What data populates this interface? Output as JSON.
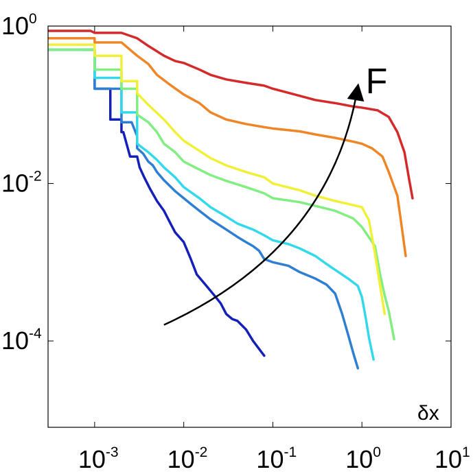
{
  "chart_data": {
    "type": "line",
    "title": "",
    "xlabel": "δx",
    "ylabel": "",
    "xscale": "log",
    "yscale": "log",
    "xlim": [
      0.0003,
      10
    ],
    "ylim": [
      8e-06,
      1
    ],
    "x_ticks": [
      {
        "value": 0.001,
        "base": "10",
        "exp": "-3"
      },
      {
        "value": 0.01,
        "base": "10",
        "exp": "-2"
      },
      {
        "value": 0.1,
        "base": "10",
        "exp": "-1"
      },
      {
        "value": 1,
        "base": "10",
        "exp": "0"
      },
      {
        "value": 10,
        "base": "10",
        "exp": "1"
      }
    ],
    "y_ticks": [
      {
        "value": 1,
        "base": "10",
        "exp": "0"
      },
      {
        "value": 0.01,
        "base": "10",
        "exp": "-2"
      },
      {
        "value": 0.0001,
        "base": "10",
        "exp": "-4"
      }
    ],
    "grid": false,
    "legend": "none",
    "annotation": {
      "text": "F",
      "meaning": "arrow indicating increasing F across curves",
      "arrow_start": [
        0.006,
        0.00016
      ],
      "arrow_control": [
        0.45,
        0.0015
      ],
      "arrow_end": [
        0.9,
        0.17
      ],
      "label_position": [
        1.1,
        0.14
      ]
    },
    "series": [
      {
        "name": "curve-1",
        "color": "#1520b8",
        "points": [
          [
            0.0007,
            0.5
          ],
          [
            0.001,
            0.5
          ],
          [
            0.001,
            0.16
          ],
          [
            0.0015,
            0.16
          ],
          [
            0.0015,
            0.065
          ],
          [
            0.002,
            0.065
          ],
          [
            0.002,
            0.045
          ],
          [
            0.0021,
            0.045
          ],
          [
            0.0025,
            0.022
          ],
          [
            0.003,
            0.022
          ],
          [
            0.0032,
            0.016
          ],
          [
            0.0036,
            0.012
          ],
          [
            0.0042,
            0.0085
          ],
          [
            0.005,
            0.006
          ],
          [
            0.006,
            0.0045
          ],
          [
            0.007,
            0.0032
          ],
          [
            0.008,
            0.0024
          ],
          [
            0.01,
            0.0018
          ],
          [
            0.012,
            0.0011
          ],
          [
            0.014,
            0.0007
          ],
          [
            0.018,
            0.0005
          ],
          [
            0.022,
            0.00038
          ],
          [
            0.026,
            0.0003
          ],
          [
            0.03,
            0.00022
          ],
          [
            0.035,
            0.00019
          ],
          [
            0.04,
            0.00018
          ],
          [
            0.05,
            0.00014
          ],
          [
            0.06,
            0.0001
          ],
          [
            0.08,
            6.5e-05
          ]
        ]
      },
      {
        "name": "curve-2",
        "color": "#2e7ed2",
        "points": [
          [
            0.0003,
            0.5
          ],
          [
            0.001,
            0.5
          ],
          [
            0.001,
            0.16
          ],
          [
            0.002,
            0.16
          ],
          [
            0.002,
            0.06
          ],
          [
            0.0026,
            0.06
          ],
          [
            0.003,
            0.04
          ],
          [
            0.003,
            0.028
          ],
          [
            0.0035,
            0.024
          ],
          [
            0.004,
            0.019
          ],
          [
            0.0045,
            0.017
          ],
          [
            0.005,
            0.014
          ],
          [
            0.006,
            0.011
          ],
          [
            0.008,
            0.008
          ],
          [
            0.01,
            0.0065
          ],
          [
            0.012,
            0.0055
          ],
          [
            0.015,
            0.0045
          ],
          [
            0.02,
            0.0035
          ],
          [
            0.03,
            0.0026
          ],
          [
            0.04,
            0.0021
          ],
          [
            0.05,
            0.0018
          ],
          [
            0.06,
            0.0016
          ],
          [
            0.07,
            0.0014
          ],
          [
            0.08,
            0.0011
          ],
          [
            0.1,
            0.001
          ],
          [
            0.15,
            0.0009
          ],
          [
            0.2,
            0.00075
          ],
          [
            0.3,
            0.00062
          ],
          [
            0.4,
            0.00052
          ],
          [
            0.5,
            0.0004
          ],
          [
            0.6,
            0.00022
          ],
          [
            0.7,
            0.00012
          ],
          [
            0.8,
            7e-05
          ],
          [
            0.9,
            4.5e-05
          ]
        ]
      },
      {
        "name": "curve-3",
        "color": "#33d9ea",
        "points": [
          [
            0.0003,
            0.5
          ],
          [
            0.001,
            0.5
          ],
          [
            0.001,
            0.22
          ],
          [
            0.002,
            0.22
          ],
          [
            0.002,
            0.08
          ],
          [
            0.003,
            0.08
          ],
          [
            0.003,
            0.032
          ],
          [
            0.0035,
            0.028
          ],
          [
            0.004,
            0.025
          ],
          [
            0.005,
            0.02
          ],
          [
            0.006,
            0.016
          ],
          [
            0.008,
            0.012
          ],
          [
            0.01,
            0.009
          ],
          [
            0.015,
            0.0065
          ],
          [
            0.02,
            0.005
          ],
          [
            0.03,
            0.0038
          ],
          [
            0.04,
            0.0031
          ],
          [
            0.06,
            0.0026
          ],
          [
            0.08,
            0.0022
          ],
          [
            0.1,
            0.0019
          ],
          [
            0.15,
            0.0017
          ],
          [
            0.2,
            0.0015
          ],
          [
            0.3,
            0.0012
          ],
          [
            0.4,
            0.00095
          ],
          [
            0.5,
            0.0008
          ],
          [
            0.7,
            0.00062
          ],
          [
            0.9,
            0.0005
          ],
          [
            1.0,
            0.00036
          ],
          [
            1.1,
            0.0002
          ],
          [
            1.2,
            0.00011
          ],
          [
            1.35,
            5.8e-05
          ]
        ]
      },
      {
        "name": "curve-4",
        "color": "#82ee82",
        "points": [
          [
            0.0003,
            0.5
          ],
          [
            0.001,
            0.5
          ],
          [
            0.001,
            0.28
          ],
          [
            0.002,
            0.28
          ],
          [
            0.002,
            0.16
          ],
          [
            0.003,
            0.16
          ],
          [
            0.003,
            0.075
          ],
          [
            0.004,
            0.06
          ],
          [
            0.005,
            0.045
          ],
          [
            0.006,
            0.032
          ],
          [
            0.008,
            0.025
          ],
          [
            0.01,
            0.019
          ],
          [
            0.015,
            0.015
          ],
          [
            0.02,
            0.0128
          ],
          [
            0.03,
            0.0108
          ],
          [
            0.05,
            0.009
          ],
          [
            0.08,
            0.0075
          ],
          [
            0.1,
            0.0065
          ],
          [
            0.2,
            0.0058
          ],
          [
            0.3,
            0.0052
          ],
          [
            0.5,
            0.0045
          ],
          [
            0.8,
            0.0036
          ],
          [
            1.0,
            0.0028
          ],
          [
            1.4,
            0.0016
          ],
          [
            1.6,
            0.0007
          ],
          [
            1.8,
            0.00038
          ],
          [
            2.0,
            0.00024
          ],
          [
            2.3,
            0.000105
          ]
        ]
      },
      {
        "name": "curve-5",
        "color": "#f0f038",
        "points": [
          [
            0.0003,
            0.58
          ],
          [
            0.001,
            0.58
          ],
          [
            0.001,
            0.42
          ],
          [
            0.002,
            0.42
          ],
          [
            0.002,
            0.2
          ],
          [
            0.003,
            0.2
          ],
          [
            0.003,
            0.14
          ],
          [
            0.004,
            0.1
          ],
          [
            0.006,
            0.065
          ],
          [
            0.008,
            0.045
          ],
          [
            0.01,
            0.035
          ],
          [
            0.015,
            0.026
          ],
          [
            0.02,
            0.021
          ],
          [
            0.03,
            0.017
          ],
          [
            0.05,
            0.014
          ],
          [
            0.08,
            0.012
          ],
          [
            0.1,
            0.01
          ],
          [
            0.2,
            0.0082
          ],
          [
            0.3,
            0.007
          ],
          [
            0.5,
            0.006
          ],
          [
            0.7,
            0.0055
          ],
          [
            1.0,
            0.005
          ],
          [
            1.2,
            0.0034
          ],
          [
            1.4,
            0.0013
          ],
          [
            1.6,
            0.0005
          ],
          [
            1.8,
            0.00022
          ]
        ]
      },
      {
        "name": "curve-6",
        "color": "#ee8628",
        "points": [
          [
            0.0003,
            0.7
          ],
          [
            0.001,
            0.7
          ],
          [
            0.001,
            0.62
          ],
          [
            0.002,
            0.62
          ],
          [
            0.0025,
            0.5
          ],
          [
            0.003,
            0.42
          ],
          [
            0.004,
            0.33
          ],
          [
            0.005,
            0.24
          ],
          [
            0.007,
            0.18
          ],
          [
            0.01,
            0.135
          ],
          [
            0.015,
            0.105
          ],
          [
            0.02,
            0.08
          ],
          [
            0.03,
            0.065
          ],
          [
            0.05,
            0.057
          ],
          [
            0.08,
            0.052
          ],
          [
            0.1,
            0.05
          ],
          [
            0.2,
            0.046
          ],
          [
            0.3,
            0.042
          ],
          [
            0.5,
            0.038
          ],
          [
            0.8,
            0.034
          ],
          [
            1.0,
            0.032
          ],
          [
            1.3,
            0.028
          ],
          [
            1.7,
            0.022
          ],
          [
            2.0,
            0.014
          ],
          [
            2.5,
            0.007
          ],
          [
            2.8,
            0.0028
          ],
          [
            3.1,
            0.0012
          ]
        ]
      },
      {
        "name": "curve-7",
        "color": "#d42a2a",
        "points": [
          [
            0.0003,
            0.87
          ],
          [
            0.0009,
            0.87
          ],
          [
            0.001,
            0.82
          ],
          [
            0.002,
            0.82
          ],
          [
            0.003,
            0.7
          ],
          [
            0.004,
            0.56
          ],
          [
            0.006,
            0.42
          ],
          [
            0.008,
            0.36
          ],
          [
            0.01,
            0.34
          ],
          [
            0.015,
            0.28
          ],
          [
            0.02,
            0.24
          ],
          [
            0.03,
            0.21
          ],
          [
            0.05,
            0.19
          ],
          [
            0.08,
            0.175
          ],
          [
            0.1,
            0.16
          ],
          [
            0.2,
            0.13
          ],
          [
            0.3,
            0.115
          ],
          [
            0.5,
            0.105
          ],
          [
            0.8,
            0.095
          ],
          [
            1.0,
            0.092
          ],
          [
            1.5,
            0.085
          ],
          [
            2.0,
            0.07
          ],
          [
            2.5,
            0.045
          ],
          [
            3.0,
            0.025
          ],
          [
            3.4,
            0.011
          ],
          [
            3.7,
            0.0065
          ]
        ]
      }
    ]
  }
}
